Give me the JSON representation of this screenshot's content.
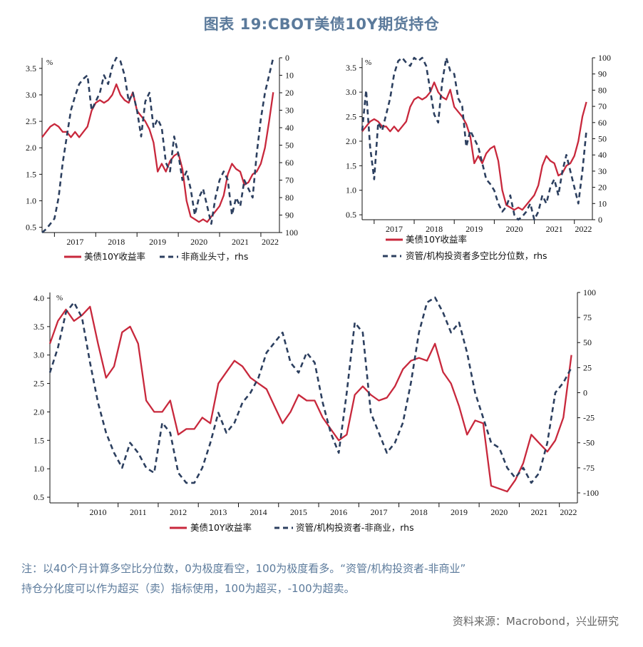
{
  "page": {
    "title": "图表 19:CBOT美债10Y期货持仓",
    "note_line1": "注：以40个月计算多空比分位数，0为极度看空，100为极度看多。“资管/机构投资者-非商业”",
    "note_line2": "持仓分化度可以作为超买（卖）指标使用，100为超买，-100为超卖。",
    "source": "资料来源：Macrobond，兴业研究"
  },
  "colors": {
    "yield": "#c8283c",
    "positioning": "#2c3f5f",
    "axis": "#111111"
  },
  "chart_data": [
    {
      "type": "line",
      "id": "noncommercial",
      "unit_label": "%",
      "x_range": [
        2016.7,
        2022.45
      ],
      "x_ticks": [
        "2017",
        "2018",
        "2019",
        "2020",
        "2021",
        "2022"
      ],
      "y_left_range": [
        0.4,
        3.7
      ],
      "y_left_ticks": [
        "0.5",
        "1.0",
        "1.5",
        "2.0",
        "2.5",
        "3.0",
        "3.5"
      ],
      "y_right_range": [
        0,
        100
      ],
      "y_right_inverted": true,
      "y_right_ticks": [
        "0",
        "10",
        "20",
        "30",
        "40",
        "50",
        "60",
        "70",
        "80",
        "90",
        "100"
      ],
      "series": [
        {
          "name": "美债10Y收益率",
          "axis": "left",
          "style": "solid",
          "x": [
            2016.7,
            2016.8,
            2016.9,
            2017.0,
            2017.1,
            2017.2,
            2017.3,
            2017.4,
            2017.5,
            2017.6,
            2017.7,
            2017.8,
            2017.9,
            2018.0,
            2018.1,
            2018.2,
            2018.3,
            2018.4,
            2018.5,
            2018.6,
            2018.7,
            2018.8,
            2018.9,
            2019.0,
            2019.1,
            2019.2,
            2019.3,
            2019.4,
            2019.5,
            2019.6,
            2019.7,
            2019.8,
            2019.9,
            2020.0,
            2020.1,
            2020.2,
            2020.3,
            2020.4,
            2020.5,
            2020.6,
            2020.7,
            2020.8,
            2020.9,
            2021.0,
            2021.1,
            2021.2,
            2021.3,
            2021.4,
            2021.5,
            2021.6,
            2021.7,
            2021.8,
            2021.9,
            2022.0,
            2022.1,
            2022.2,
            2022.3
          ],
          "y": [
            2.2,
            2.3,
            2.4,
            2.45,
            2.4,
            2.3,
            2.3,
            2.2,
            2.3,
            2.2,
            2.3,
            2.4,
            2.7,
            2.85,
            2.9,
            2.85,
            2.9,
            3.0,
            3.2,
            3.0,
            2.9,
            2.85,
            3.05,
            2.7,
            2.6,
            2.5,
            2.35,
            2.1,
            1.55,
            1.7,
            1.55,
            1.75,
            1.85,
            1.9,
            1.6,
            1.0,
            0.7,
            0.65,
            0.6,
            0.65,
            0.6,
            0.7,
            0.8,
            0.9,
            1.1,
            1.5,
            1.7,
            1.6,
            1.55,
            1.3,
            1.35,
            1.5,
            1.55,
            1.7,
            2.0,
            2.5,
            3.05
          ]
        },
        {
          "name": "非商业头寸, rhs",
          "axis": "right",
          "style": "dashed",
          "x": [
            2016.7,
            2016.8,
            2016.9,
            2017.0,
            2017.1,
            2017.2,
            2017.3,
            2017.4,
            2017.5,
            2017.6,
            2017.7,
            2017.8,
            2017.9,
            2018.0,
            2018.1,
            2018.2,
            2018.3,
            2018.4,
            2018.5,
            2018.6,
            2018.7,
            2018.8,
            2018.9,
            2019.0,
            2019.1,
            2019.2,
            2019.3,
            2019.4,
            2019.5,
            2019.6,
            2019.7,
            2019.8,
            2019.9,
            2020.0,
            2020.1,
            2020.2,
            2020.3,
            2020.4,
            2020.5,
            2020.6,
            2020.7,
            2020.8,
            2020.9,
            2021.0,
            2021.1,
            2021.2,
            2021.3,
            2021.4,
            2021.5,
            2021.6,
            2021.7,
            2021.8,
            2021.9,
            2022.0,
            2022.1,
            2022.2,
            2022.3
          ],
          "y": [
            100,
            98,
            95,
            92,
            80,
            60,
            45,
            30,
            22,
            15,
            12,
            10,
            30,
            25,
            20,
            10,
            15,
            5,
            0,
            2,
            10,
            25,
            20,
            30,
            45,
            25,
            20,
            40,
            35,
            40,
            60,
            65,
            45,
            55,
            70,
            65,
            75,
            90,
            80,
            75,
            85,
            95,
            80,
            70,
            65,
            70,
            90,
            80,
            85,
            70,
            75,
            80,
            55,
            35,
            20,
            10,
            0
          ]
        }
      ],
      "legend": [
        "美债10Y收益率",
        "非商业头寸，rhs"
      ]
    },
    {
      "type": "line",
      "id": "asset_manager",
      "unit_label": "%",
      "x_range": [
        2016.7,
        2022.45
      ],
      "x_ticks": [
        "2017",
        "2018",
        "2019",
        "2020",
        "2021",
        "2022"
      ],
      "y_left_range": [
        0.4,
        3.7
      ],
      "y_left_ticks": [
        "0.5",
        "1.0",
        "1.5",
        "2.0",
        "2.5",
        "3.0",
        "3.5"
      ],
      "y_right_range": [
        0,
        100
      ],
      "y_right_inverted": false,
      "y_right_ticks": [
        "0",
        "10",
        "20",
        "30",
        "40",
        "50",
        "60",
        "70",
        "80",
        "90",
        "100"
      ],
      "series": [
        {
          "name": "美债10Y收益率",
          "axis": "left",
          "style": "solid",
          "x": [
            2016.7,
            2016.8,
            2016.9,
            2017.0,
            2017.1,
            2017.2,
            2017.3,
            2017.4,
            2017.5,
            2017.6,
            2017.7,
            2017.8,
            2017.9,
            2018.0,
            2018.1,
            2018.2,
            2018.3,
            2018.4,
            2018.5,
            2018.6,
            2018.7,
            2018.8,
            2018.9,
            2019.0,
            2019.1,
            2019.2,
            2019.3,
            2019.4,
            2019.5,
            2019.6,
            2019.7,
            2019.8,
            2019.9,
            2020.0,
            2020.1,
            2020.2,
            2020.3,
            2020.4,
            2020.5,
            2020.6,
            2020.7,
            2020.8,
            2020.9,
            2021.0,
            2021.1,
            2021.2,
            2021.3,
            2021.4,
            2021.5,
            2021.6,
            2021.7,
            2021.8,
            2021.9,
            2022.0,
            2022.1,
            2022.2,
            2022.3
          ],
          "y": [
            2.2,
            2.3,
            2.4,
            2.45,
            2.4,
            2.3,
            2.3,
            2.2,
            2.3,
            2.2,
            2.3,
            2.4,
            2.7,
            2.85,
            2.9,
            2.85,
            2.9,
            3.0,
            3.2,
            3.0,
            2.9,
            2.85,
            3.05,
            2.7,
            2.6,
            2.5,
            2.35,
            2.1,
            1.55,
            1.7,
            1.55,
            1.75,
            1.85,
            1.9,
            1.6,
            1.0,
            0.7,
            0.65,
            0.6,
            0.65,
            0.6,
            0.7,
            0.8,
            0.9,
            1.1,
            1.5,
            1.7,
            1.6,
            1.55,
            1.3,
            1.35,
            1.5,
            1.55,
            1.7,
            2.0,
            2.5,
            2.8
          ]
        },
        {
          "name": "资管/机构投资者多空比分位数, rhs",
          "axis": "right",
          "style": "dashed",
          "x": [
            2016.7,
            2016.8,
            2016.9,
            2017.0,
            2017.1,
            2017.2,
            2017.3,
            2017.4,
            2017.5,
            2017.6,
            2017.7,
            2017.8,
            2017.9,
            2018.0,
            2018.1,
            2018.2,
            2018.3,
            2018.4,
            2018.5,
            2018.6,
            2018.7,
            2018.8,
            2018.9,
            2019.0,
            2019.1,
            2019.2,
            2019.3,
            2019.4,
            2019.5,
            2019.6,
            2019.7,
            2019.8,
            2019.9,
            2020.0,
            2020.1,
            2020.2,
            2020.3,
            2020.4,
            2020.5,
            2020.6,
            2020.7,
            2020.8,
            2020.9,
            2021.0,
            2021.1,
            2021.2,
            2021.3,
            2021.4,
            2021.5,
            2021.6,
            2021.7,
            2021.8,
            2021.9,
            2022.0,
            2022.1,
            2022.2,
            2022.3
          ],
          "y": [
            55,
            80,
            45,
            25,
            60,
            55,
            65,
            75,
            90,
            98,
            100,
            97,
            95,
            100,
            98,
            100,
            95,
            80,
            65,
            60,
            85,
            100,
            92,
            90,
            75,
            70,
            45,
            55,
            50,
            45,
            35,
            25,
            22,
            18,
            10,
            5,
            8,
            15,
            3,
            0,
            2,
            5,
            10,
            0,
            5,
            15,
            10,
            20,
            25,
            15,
            30,
            40,
            30,
            20,
            10,
            30,
            55
          ]
        }
      ],
      "legend": [
        "美债10Y收益率",
        "资管/机构投资者多空比分位数，rhs"
      ]
    },
    {
      "type": "line",
      "id": "divergence",
      "unit_label": "%",
      "x_range": [
        2009.3,
        2022.45
      ],
      "x_ticks": [
        "2010",
        "2011",
        "2012",
        "2013",
        "2014",
        "2015",
        "2016",
        "2017",
        "2018",
        "2019",
        "2020",
        "2021",
        "2022"
      ],
      "y_left_range": [
        0.4,
        4.1
      ],
      "y_left_ticks": [
        "0.5",
        "1.0",
        "1.5",
        "2.0",
        "2.5",
        "3.0",
        "3.5",
        "4.0"
      ],
      "y_right_range": [
        -110,
        100
      ],
      "y_right_inverted": false,
      "y_right_ticks": [
        "-100",
        "-75",
        "-50",
        "-25",
        "0",
        "25",
        "50",
        "75",
        "100"
      ],
      "series": [
        {
          "name": "美债10Y收益率",
          "axis": "left",
          "style": "solid",
          "x": [
            2009.3,
            2009.5,
            2009.7,
            2009.9,
            2010.1,
            2010.3,
            2010.5,
            2010.7,
            2010.9,
            2011.1,
            2011.3,
            2011.5,
            2011.7,
            2011.9,
            2012.1,
            2012.3,
            2012.5,
            2012.7,
            2012.9,
            2013.1,
            2013.3,
            2013.5,
            2013.7,
            2013.9,
            2014.1,
            2014.3,
            2014.5,
            2014.7,
            2014.9,
            2015.1,
            2015.3,
            2015.5,
            2015.7,
            2015.9,
            2016.1,
            2016.3,
            2016.5,
            2016.7,
            2016.9,
            2017.1,
            2017.3,
            2017.5,
            2017.7,
            2017.9,
            2018.1,
            2018.3,
            2018.5,
            2018.7,
            2018.9,
            2019.1,
            2019.3,
            2019.5,
            2019.7,
            2019.9,
            2020.1,
            2020.3,
            2020.5,
            2020.7,
            2020.9,
            2021.1,
            2021.3,
            2021.5,
            2021.7,
            2021.9,
            2022.1,
            2022.3
          ],
          "y": [
            3.2,
            3.6,
            3.8,
            3.6,
            3.7,
            3.85,
            3.2,
            2.6,
            2.8,
            3.4,
            3.5,
            3.2,
            2.2,
            2.0,
            2.0,
            2.2,
            1.6,
            1.7,
            1.7,
            1.9,
            1.8,
            2.5,
            2.7,
            2.9,
            2.8,
            2.6,
            2.5,
            2.4,
            2.1,
            1.8,
            2.0,
            2.3,
            2.2,
            2.2,
            1.9,
            1.7,
            1.5,
            1.6,
            2.3,
            2.45,
            2.3,
            2.2,
            2.25,
            2.45,
            2.75,
            2.9,
            2.95,
            2.9,
            3.2,
            2.7,
            2.5,
            2.1,
            1.6,
            1.85,
            1.8,
            0.7,
            0.65,
            0.6,
            0.8,
            1.1,
            1.6,
            1.45,
            1.3,
            1.5,
            1.9,
            3.0
          ]
        },
        {
          "name": "资管/机构投资者-非商业, rhs",
          "axis": "right",
          "style": "dashed",
          "x": [
            2009.3,
            2009.5,
            2009.7,
            2009.9,
            2010.1,
            2010.3,
            2010.5,
            2010.7,
            2010.9,
            2011.1,
            2011.3,
            2011.5,
            2011.7,
            2011.9,
            2012.1,
            2012.3,
            2012.5,
            2012.7,
            2012.9,
            2013.1,
            2013.3,
            2013.5,
            2013.7,
            2013.9,
            2014.1,
            2014.3,
            2014.5,
            2014.7,
            2014.9,
            2015.1,
            2015.3,
            2015.5,
            2015.7,
            2015.9,
            2016.1,
            2016.3,
            2016.5,
            2016.7,
            2016.9,
            2017.1,
            2017.3,
            2017.5,
            2017.7,
            2017.9,
            2018.1,
            2018.3,
            2018.5,
            2018.7,
            2018.9,
            2019.1,
            2019.3,
            2019.5,
            2019.7,
            2019.9,
            2020.1,
            2020.3,
            2020.5,
            2020.7,
            2020.9,
            2021.1,
            2021.3,
            2021.5,
            2021.7,
            2021.9,
            2022.1,
            2022.3
          ],
          "y": [
            20,
            45,
            80,
            90,
            75,
            30,
            -10,
            -40,
            -60,
            -75,
            -50,
            -60,
            -75,
            -80,
            -30,
            -40,
            -80,
            -90,
            -90,
            -75,
            -50,
            -20,
            -40,
            -30,
            -10,
            0,
            15,
            40,
            50,
            60,
            30,
            20,
            40,
            30,
            -10,
            -40,
            -60,
            0,
            70,
            60,
            -20,
            -40,
            -60,
            -50,
            -30,
            10,
            60,
            90,
            95,
            80,
            60,
            70,
            40,
            0,
            -25,
            -50,
            -55,
            -75,
            -85,
            -75,
            -90,
            -80,
            -50,
            0,
            10,
            25
          ]
        }
      ],
      "legend": [
        "美债10Y收益率",
        "资管/机构投资者-非商业，rhs"
      ]
    }
  ]
}
